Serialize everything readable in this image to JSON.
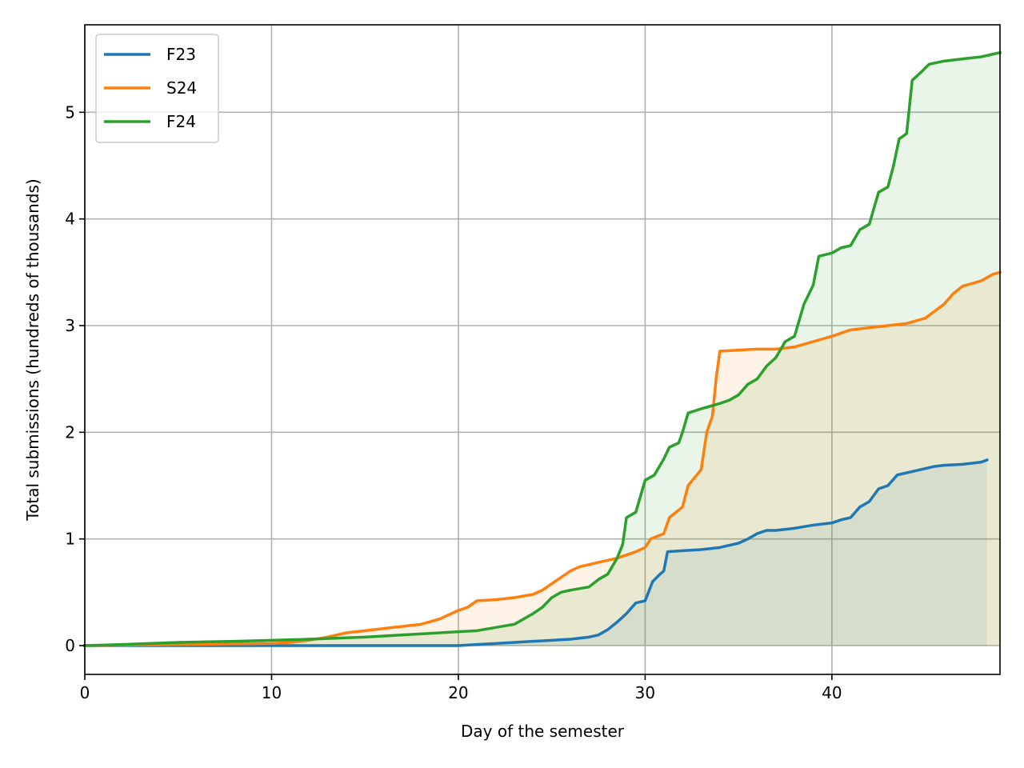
{
  "chart_data": {
    "type": "area",
    "xlabel": "Day of the semester",
    "ylabel": "Total submissions (hundreds of thousands)",
    "xlim": [
      0,
      49
    ],
    "ylim": [
      -0.27,
      5.82
    ],
    "xticks": [
      0,
      10,
      20,
      30,
      40
    ],
    "yticks": [
      0,
      1,
      2,
      3,
      4,
      5
    ],
    "grid": true,
    "legend_position": "upper-left",
    "series": [
      {
        "name": "F23",
        "color": "#1f77b4",
        "points": [
          [
            0,
            0
          ],
          [
            10,
            0.0
          ],
          [
            20,
            0.0
          ],
          [
            21,
            0.01
          ],
          [
            22,
            0.02
          ],
          [
            23,
            0.03
          ],
          [
            24,
            0.04
          ],
          [
            25,
            0.05
          ],
          [
            26,
            0.06
          ],
          [
            27,
            0.08
          ],
          [
            27.5,
            0.1
          ],
          [
            28,
            0.15
          ],
          [
            28.5,
            0.22
          ],
          [
            29,
            0.3
          ],
          [
            29.5,
            0.4
          ],
          [
            30,
            0.42
          ],
          [
            30.4,
            0.6
          ],
          [
            30.8,
            0.67
          ],
          [
            31,
            0.7
          ],
          [
            31.2,
            0.88
          ],
          [
            32,
            0.89
          ],
          [
            33,
            0.9
          ],
          [
            34,
            0.92
          ],
          [
            35,
            0.96
          ],
          [
            35.5,
            1.0
          ],
          [
            36,
            1.05
          ],
          [
            36.5,
            1.08
          ],
          [
            37,
            1.08
          ],
          [
            38,
            1.1
          ],
          [
            39,
            1.13
          ],
          [
            40,
            1.15
          ],
          [
            40.5,
            1.18
          ],
          [
            41,
            1.2
          ],
          [
            41.5,
            1.3
          ],
          [
            42,
            1.35
          ],
          [
            42.5,
            1.47
          ],
          [
            43,
            1.5
          ],
          [
            43.5,
            1.6
          ],
          [
            44,
            1.62
          ],
          [
            44.5,
            1.64
          ],
          [
            45,
            1.66
          ],
          [
            45.5,
            1.68
          ],
          [
            46,
            1.69
          ],
          [
            47,
            1.7
          ],
          [
            48,
            1.72
          ],
          [
            48.3,
            1.74
          ]
        ]
      },
      {
        "name": "S24",
        "color": "#ff7f0e",
        "points": [
          [
            0,
            0
          ],
          [
            5,
            0.01
          ],
          [
            10,
            0.02
          ],
          [
            11,
            0.03
          ],
          [
            12,
            0.05
          ],
          [
            13,
            0.08
          ],
          [
            14,
            0.12
          ],
          [
            15,
            0.14
          ],
          [
            16,
            0.16
          ],
          [
            17,
            0.18
          ],
          [
            18,
            0.2
          ],
          [
            19,
            0.25
          ],
          [
            20,
            0.33
          ],
          [
            20.5,
            0.36
          ],
          [
            21,
            0.42
          ],
          [
            22,
            0.43
          ],
          [
            23,
            0.45
          ],
          [
            24,
            0.48
          ],
          [
            24.5,
            0.52
          ],
          [
            25,
            0.58
          ],
          [
            25.5,
            0.64
          ],
          [
            26,
            0.7
          ],
          [
            26.5,
            0.74
          ],
          [
            27,
            0.76
          ],
          [
            28,
            0.8
          ],
          [
            28.5,
            0.82
          ],
          [
            29,
            0.85
          ],
          [
            29.5,
            0.88
          ],
          [
            30,
            0.92
          ],
          [
            30.3,
            1.0
          ],
          [
            31,
            1.05
          ],
          [
            31.3,
            1.2
          ],
          [
            32,
            1.3
          ],
          [
            32.3,
            1.5
          ],
          [
            33,
            1.65
          ],
          [
            33.3,
            2.0
          ],
          [
            33.6,
            2.15
          ],
          [
            33.8,
            2.5
          ],
          [
            34,
            2.76
          ],
          [
            35,
            2.77
          ],
          [
            36,
            2.78
          ],
          [
            37,
            2.78
          ],
          [
            38,
            2.8
          ],
          [
            39,
            2.85
          ],
          [
            40,
            2.9
          ],
          [
            41,
            2.96
          ],
          [
            42,
            2.98
          ],
          [
            43,
            3.0
          ],
          [
            44,
            3.02
          ],
          [
            45,
            3.07
          ],
          [
            46,
            3.2
          ],
          [
            46.5,
            3.3
          ],
          [
            47,
            3.37
          ],
          [
            48,
            3.42
          ],
          [
            48.6,
            3.48
          ],
          [
            49,
            3.5
          ]
        ]
      },
      {
        "name": "F24",
        "color": "#2ca02c",
        "points": [
          [
            0,
            0
          ],
          [
            2,
            0.01
          ],
          [
            5,
            0.03
          ],
          [
            8,
            0.04
          ],
          [
            10,
            0.05
          ],
          [
            12,
            0.06
          ],
          [
            15,
            0.08
          ],
          [
            18,
            0.11
          ],
          [
            20,
            0.13
          ],
          [
            21,
            0.14
          ],
          [
            22,
            0.17
          ],
          [
            23,
            0.2
          ],
          [
            23.5,
            0.25
          ],
          [
            24,
            0.3
          ],
          [
            24.5,
            0.36
          ],
          [
            25,
            0.45
          ],
          [
            25.5,
            0.5
          ],
          [
            26,
            0.52
          ],
          [
            27,
            0.55
          ],
          [
            27.5,
            0.62
          ],
          [
            28,
            0.67
          ],
          [
            28.5,
            0.82
          ],
          [
            28.8,
            0.95
          ],
          [
            29,
            1.2
          ],
          [
            29.5,
            1.25
          ],
          [
            30,
            1.55
          ],
          [
            30.5,
            1.6
          ],
          [
            31,
            1.75
          ],
          [
            31.3,
            1.86
          ],
          [
            31.8,
            1.9
          ],
          [
            32,
            2.0
          ],
          [
            32.3,
            2.18
          ],
          [
            33,
            2.22
          ],
          [
            34,
            2.27
          ],
          [
            34.5,
            2.3
          ],
          [
            35,
            2.35
          ],
          [
            35.5,
            2.45
          ],
          [
            36,
            2.5
          ],
          [
            36.5,
            2.62
          ],
          [
            37,
            2.7
          ],
          [
            37.5,
            2.85
          ],
          [
            38,
            2.9
          ],
          [
            38.5,
            3.2
          ],
          [
            39,
            3.38
          ],
          [
            39.3,
            3.65
          ],
          [
            40,
            3.68
          ],
          [
            40.5,
            3.73
          ],
          [
            41,
            3.75
          ],
          [
            41.5,
            3.9
          ],
          [
            42,
            3.95
          ],
          [
            42.5,
            4.25
          ],
          [
            43,
            4.3
          ],
          [
            43.3,
            4.5
          ],
          [
            43.6,
            4.75
          ],
          [
            44,
            4.8
          ],
          [
            44.3,
            5.3
          ],
          [
            44.8,
            5.38
          ],
          [
            45.2,
            5.45
          ],
          [
            46,
            5.48
          ],
          [
            47,
            5.5
          ],
          [
            48,
            5.52
          ],
          [
            49,
            5.56
          ]
        ]
      }
    ]
  }
}
